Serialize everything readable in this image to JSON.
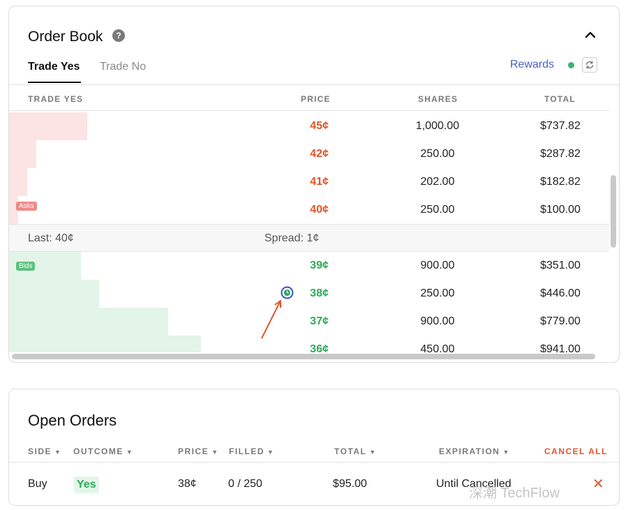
{
  "order_book": {
    "title": "Order Book",
    "help_icon": "?",
    "tabs": [
      "Trade Yes",
      "Trade No"
    ],
    "rewards_label": "Rewards",
    "columns": [
      "TRADE YES",
      "PRICE",
      "SHARES",
      "TOTAL"
    ],
    "asks_tag": "Asks",
    "bids_tag": "Bids",
    "asks": [
      {
        "price": "45¢",
        "shares": "1,000.00",
        "total": "$737.82",
        "depth": 0.13
      },
      {
        "price": "42¢",
        "shares": "250.00",
        "total": "$287.82",
        "depth": 0.045
      },
      {
        "price": "41¢",
        "shares": "202.00",
        "total": "$182.82",
        "depth": 0.03
      },
      {
        "price": "40¢",
        "shares": "250.00",
        "total": "$100.00",
        "depth": 0.015
      }
    ],
    "last": "Last: 40¢",
    "spread": "Spread: 1¢",
    "bids": [
      {
        "price": "39¢",
        "shares": "900.00",
        "total": "$351.00",
        "depth": 0.12
      },
      {
        "price": "38¢",
        "shares": "250.00",
        "total": "$446.00",
        "depth": 0.15
      },
      {
        "price": "37¢",
        "shares": "900.00",
        "total": "$779.00",
        "depth": 0.265
      },
      {
        "price": "36¢",
        "shares": "450.00",
        "total": "$941.00",
        "depth": 0.32
      }
    ],
    "colors": {
      "ask": "#e0552b",
      "bid": "#2eaa56",
      "rewards": "#4a5fc1"
    }
  },
  "open_orders": {
    "title": "Open Orders",
    "columns": [
      "SIDE",
      "OUTCOME",
      "PRICE",
      "FILLED",
      "TOTAL",
      "EXPIRATION"
    ],
    "cancel_all": "CANCEL ALL",
    "rows": [
      {
        "side": "Buy",
        "outcome": "Yes",
        "price": "38¢",
        "filled": "0 / 250",
        "total": "$95.00",
        "expiration": "Until Cancelled"
      }
    ]
  },
  "watermark": "深潮 TechFlow"
}
